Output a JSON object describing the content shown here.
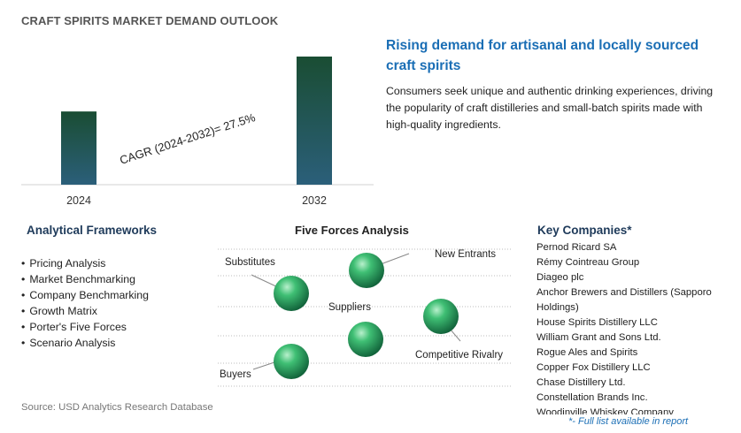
{
  "title": "CRAFT SPIRITS MARKET DEMAND OUTLOOK",
  "chart_data": {
    "type": "bar",
    "categories": [
      "2024",
      "2032"
    ],
    "values": [
      1.0,
      1.75
    ],
    "annotation": "CAGR (2024-2032)=   27.5%",
    "bar_color_top": "#1a4d33",
    "bar_color_bottom": "#2b5f7a"
  },
  "highlight": {
    "headline": "Rising demand for artisanal and locally sourced craft spirits",
    "description": "Consumers seek unique and authentic drinking experiences, driving the popularity of craft distilleries and small-batch spirits made with high-quality ingredients."
  },
  "frameworks": {
    "title": "Analytical Frameworks",
    "items": [
      "Pricing Analysis",
      "Market Benchmarking",
      "Company Benchmarking",
      "Growth Matrix",
      "Porter's Five Forces",
      "Scenario Analysis"
    ]
  },
  "five_forces": {
    "title": "Five Forces Analysis",
    "labels": {
      "new_entrants": "New Entrants",
      "substitutes": "Substitutes",
      "suppliers": "Suppliers",
      "buyers": "Buyers",
      "rivalry": "Competitive Rivalry"
    },
    "sphere_color": "#2e9e5e"
  },
  "companies": {
    "title": "Key Companies*",
    "items": [
      "Pernod Ricard SA",
      "Rémy Cointreau Group",
      "Diageo plc",
      "Anchor Brewers and Distillers (Sapporo",
      "Holdings)",
      "House Spirits Distillery LLC",
      "William Grant and Sons Ltd.",
      "Rogue Ales and Spirits",
      "Copper Fox Distillery LLC",
      "Chase Distillery Ltd.",
      "Constellation Brands Inc.",
      "Woodinville Whiskey Company"
    ]
  },
  "source": "Source: USD Analytics Research Database",
  "footnote": "*- Full list available in report"
}
